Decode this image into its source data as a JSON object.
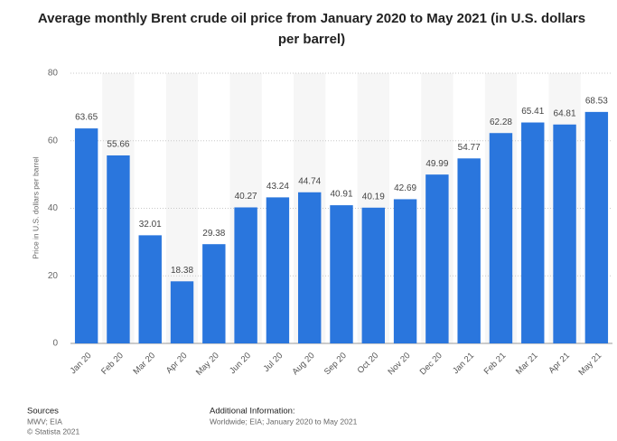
{
  "chart_data": {
    "type": "bar",
    "title": [
      "Average monthly Brent crude oil price from January 2020 to May 2021 (in U.S. dollars",
      "per barrel)"
    ],
    "y_label": "Price in U.S. dollars per barrel",
    "categories": [
      "Jan 20",
      "Feb 20",
      "Mar 20",
      "Apr 20",
      "May 20",
      "Jun 20",
      "Jul 20",
      "Aug 20",
      "Sep 20",
      "Oct 20",
      "Nov 20",
      "Dec 20",
      "Jan 21",
      "Feb 21",
      "Mar 21",
      "Apr 21",
      "May 21"
    ],
    "values": [
      63.65,
      55.66,
      32.01,
      18.38,
      29.38,
      40.27,
      43.24,
      44.74,
      40.91,
      40.19,
      42.69,
      49.99,
      54.77,
      62.28,
      65.41,
      64.81,
      68.53
    ],
    "color": "#2a76dd",
    "ylim": [
      0,
      80
    ],
    "yticks": [
      0,
      20,
      40,
      60,
      80
    ],
    "grid": true,
    "footer": {
      "sources_label": "Sources",
      "sources": [
        "MWV; EIA",
        "© Statista 2021"
      ],
      "info_label": "Additional Information:",
      "info": "Worldwide; EIA; January 2020 to May 2021"
    }
  }
}
